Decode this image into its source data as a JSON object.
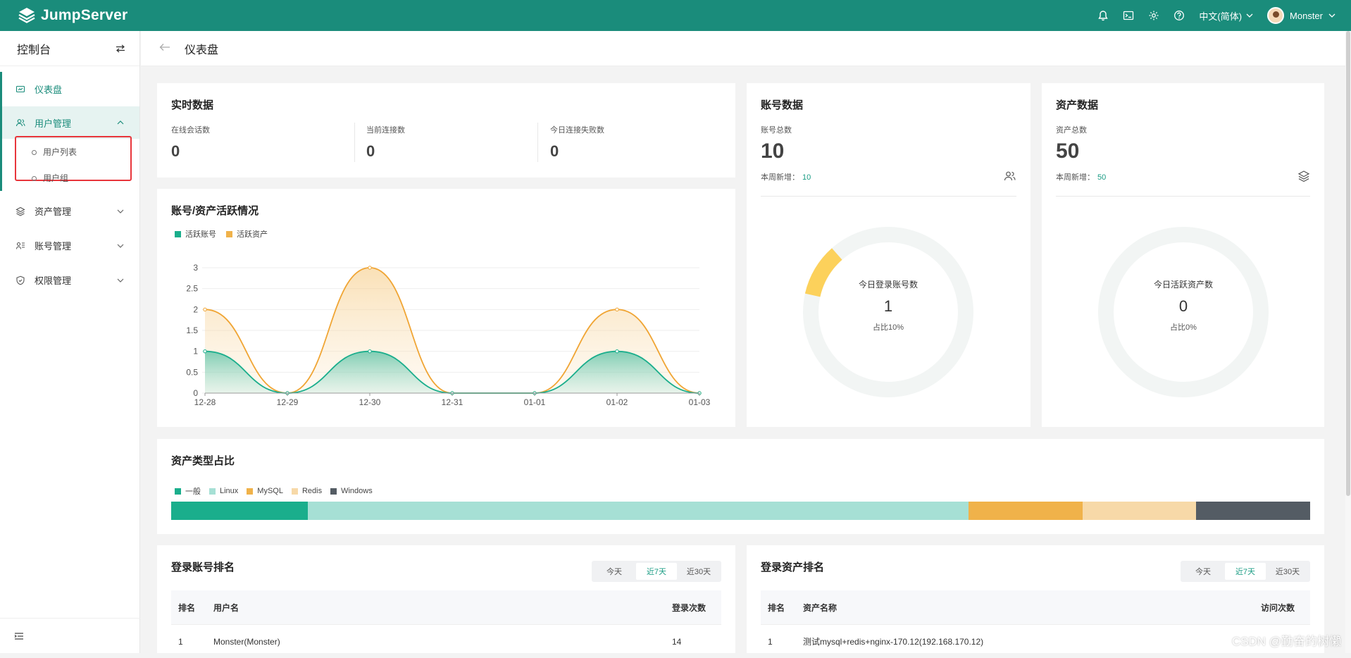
{
  "app": {
    "name": "JumpServer"
  },
  "topbar": {
    "language": "中文(简体)",
    "user": "Monster",
    "icons": [
      "bell-icon",
      "terminal-icon",
      "settings-icon",
      "help-icon"
    ]
  },
  "sidebar": {
    "title": "控制台",
    "items": [
      {
        "label": "仪表盘",
        "icon": "dashboard-icon"
      },
      {
        "label": "用户管理",
        "icon": "users-icon"
      },
      {
        "label": "资产管理",
        "icon": "assets-icon"
      },
      {
        "label": "账号管理",
        "icon": "accounts-icon"
      },
      {
        "label": "权限管理",
        "icon": "permission-icon"
      }
    ],
    "sub_items": [
      "用户列表",
      "用户组"
    ]
  },
  "breadcrumb": {
    "title": "仪表盘"
  },
  "realtime": {
    "title": "实时数据",
    "stats": [
      {
        "label": "在线会话数",
        "value": "0"
      },
      {
        "label": "当前连接数",
        "value": "0"
      },
      {
        "label": "今日连接失败数",
        "value": "0"
      }
    ]
  },
  "accounts": {
    "title": "账号数据",
    "total_label": "账号总数",
    "total": "10",
    "new_label": "本周新增：",
    "new_value": "10",
    "donut_label": "今日登录账号数",
    "donut_value": "1",
    "donut_pct": "占比10%",
    "donut_fraction": 0.1
  },
  "assets": {
    "title": "资产数据",
    "total_label": "资产总数",
    "total": "50",
    "new_label": "本周新增：",
    "new_value": "50",
    "donut_label": "今日活跃资产数",
    "donut_value": "0",
    "donut_pct": "占比0%",
    "donut_fraction": 0
  },
  "chart_data": {
    "type": "area",
    "title": "账号/资产活跃情况",
    "categories": [
      "12-28",
      "12-29",
      "12-30",
      "12-31",
      "01-01",
      "01-02",
      "01-03"
    ],
    "ylim": [
      0,
      3
    ],
    "yticks": [
      "0",
      "0.5",
      "1",
      "1.5",
      "2",
      "2.5",
      "3"
    ],
    "series": [
      {
        "name": "活跃账号",
        "color": "#1aae8c",
        "values": [
          1,
          0,
          1,
          0,
          0,
          1,
          0
        ]
      },
      {
        "name": "活跃资产",
        "color": "#f0a534",
        "values": [
          2,
          0,
          3,
          0,
          0,
          2,
          0
        ]
      }
    ],
    "legend": "top-left"
  },
  "asset_types": {
    "title": "资产类型占比",
    "items": [
      {
        "name": "一般",
        "color": "#1aae8c",
        "share": 0.12
      },
      {
        "name": "Linux",
        "color": "#a6e0d5",
        "share": 0.58
      },
      {
        "name": "MySQL",
        "color": "#f0b24a",
        "share": 0.1
      },
      {
        "name": "Redis",
        "color": "#f7d9a8",
        "share": 0.1
      },
      {
        "name": "Windows",
        "color": "#545c64",
        "share": 0.1
      }
    ]
  },
  "login_accounts": {
    "title": "登录账号排名",
    "tabs": [
      "今天",
      "近7天",
      "近30天"
    ],
    "active_tab": "近7天",
    "columns": [
      "排名",
      "用户名",
      "登录次数"
    ],
    "rows": [
      [
        "1",
        "Monster(Monster)",
        "14"
      ]
    ]
  },
  "login_assets": {
    "title": "登录资产排名",
    "tabs": [
      "今天",
      "近7天",
      "近30天"
    ],
    "active_tab": "近7天",
    "columns": [
      "排名",
      "资产名称",
      "访问次数"
    ],
    "rows": [
      [
        "1",
        "测试mysql+redis+nginx-170.12(192.168.170.12)",
        ""
      ]
    ]
  },
  "watermark": "CSDN @勤奋的树懒"
}
